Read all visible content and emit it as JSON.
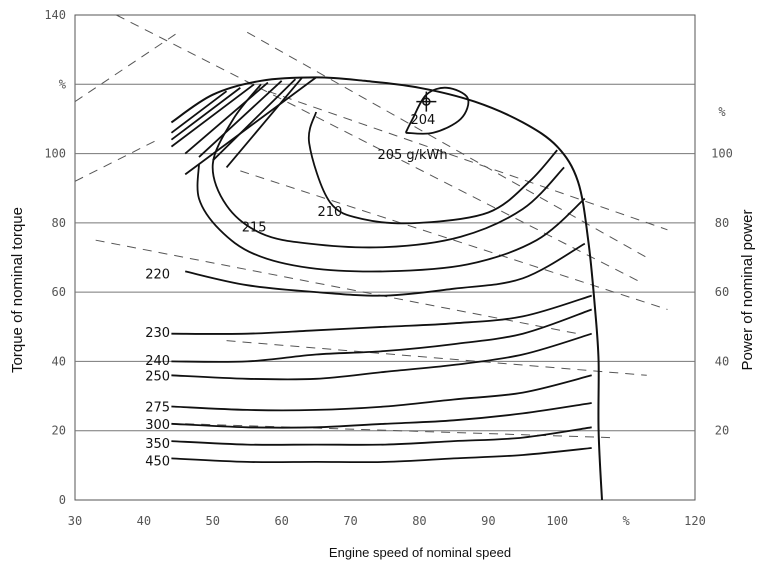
{
  "chart_data": {
    "type": "line",
    "title": "",
    "xlabel": "Engine speed of nominal speed",
    "ylabel": "Torque of nominal torque",
    "y2label": "Power of nominal power",
    "xlim": [
      30,
      120
    ],
    "ylim": [
      0,
      140
    ],
    "y2lim": [
      0,
      140
    ],
    "x_ticks": [
      "30",
      "40",
      "50",
      "60",
      "70",
      "80",
      "90",
      "100",
      "%",
      "120"
    ],
    "y_ticks": [
      "0",
      "20",
      "40",
      "60",
      "80",
      "100",
      "%",
      "140"
    ],
    "y2_ticks": [
      "20",
      "40",
      "60",
      "80",
      "100",
      "%"
    ],
    "grid": true,
    "full_load_curve": [
      [
        44,
        109
      ],
      [
        50,
        117
      ],
      [
        57,
        121
      ],
      [
        65,
        122
      ],
      [
        72,
        121
      ],
      [
        80,
        119
      ],
      [
        88,
        115
      ],
      [
        95,
        109
      ],
      [
        100,
        102
      ],
      [
        103,
        92
      ],
      [
        104.5,
        75
      ],
      [
        105.5,
        55
      ],
      [
        106,
        40
      ],
      [
        106,
        20
      ],
      [
        106.5,
        0
      ]
    ],
    "contours": [
      {
        "label": "204",
        "points": [
          [
            78,
            106
          ],
          [
            79,
            110
          ],
          [
            81,
            117
          ],
          [
            84,
            119
          ],
          [
            87,
            116
          ],
          [
            86,
            110
          ],
          [
            82,
            106
          ],
          [
            78,
            106
          ]
        ]
      },
      {
        "label": "205 g/kWh",
        "points": [
          [
            65,
            112
          ],
          [
            64,
            103
          ],
          [
            67,
            86
          ],
          [
            72,
            81
          ],
          [
            80,
            80
          ],
          [
            90,
            83
          ],
          [
            96,
            92
          ],
          [
            100,
            101
          ]
        ]
      },
      {
        "label": "210",
        "points": [
          [
            57,
            120
          ],
          [
            53,
            110
          ],
          [
            50,
            97
          ],
          [
            52,
            85
          ],
          [
            57,
            77
          ],
          [
            64,
            74
          ],
          [
            75,
            73
          ],
          [
            86,
            76
          ],
          [
            95,
            84
          ],
          [
            101,
            96
          ]
        ]
      },
      {
        "label": "215",
        "points": [
          [
            48,
            97
          ],
          [
            48,
            87
          ],
          [
            51,
            78
          ],
          [
            56,
            71
          ],
          [
            64,
            67
          ],
          [
            75,
            66
          ],
          [
            87,
            68
          ],
          [
            97,
            75
          ],
          [
            104,
            87
          ]
        ]
      },
      {
        "label": "220",
        "points": [
          [
            46,
            66
          ],
          [
            55,
            62
          ],
          [
            65,
            60
          ],
          [
            75,
            59
          ],
          [
            85,
            61
          ],
          [
            95,
            64
          ],
          [
            104,
            74
          ]
        ]
      },
      {
        "label": "230",
        "points": [
          [
            44,
            48
          ],
          [
            55,
            48
          ],
          [
            65,
            49
          ],
          [
            75,
            50
          ],
          [
            85,
            51
          ],
          [
            95,
            53
          ],
          [
            105,
            59
          ]
        ]
      },
      {
        "label": "240",
        "points": [
          [
            44,
            40
          ],
          [
            55,
            40
          ],
          [
            65,
            42
          ],
          [
            75,
            43
          ],
          [
            85,
            45
          ],
          [
            95,
            48
          ],
          [
            105,
            55
          ]
        ]
      },
      {
        "label": "250",
        "points": [
          [
            44,
            36
          ],
          [
            55,
            35
          ],
          [
            65,
            35
          ],
          [
            75,
            37
          ],
          [
            85,
            39
          ],
          [
            95,
            42
          ],
          [
            105,
            48
          ]
        ]
      },
      {
        "label": "275",
        "points": [
          [
            44,
            27
          ],
          [
            55,
            26
          ],
          [
            65,
            26
          ],
          [
            75,
            27
          ],
          [
            85,
            29
          ],
          [
            95,
            31
          ],
          [
            105,
            36
          ]
        ]
      },
      {
        "label": "300",
        "points": [
          [
            44,
            22
          ],
          [
            55,
            21
          ],
          [
            65,
            21
          ],
          [
            75,
            22
          ],
          [
            85,
            23
          ],
          [
            95,
            25
          ],
          [
            105,
            28
          ]
        ]
      },
      {
        "label": "350",
        "points": [
          [
            44,
            17
          ],
          [
            55,
            16
          ],
          [
            65,
            16
          ],
          [
            75,
            16
          ],
          [
            85,
            17
          ],
          [
            95,
            18
          ],
          [
            105,
            21
          ]
        ]
      },
      {
        "label": "450",
        "points": [
          [
            44,
            12
          ],
          [
            55,
            11
          ],
          [
            65,
            11
          ],
          [
            75,
            11
          ],
          [
            85,
            12
          ],
          [
            95,
            13
          ],
          [
            105,
            15
          ]
        ]
      }
    ],
    "operating_point": {
      "x": 81,
      "y": 115
    }
  }
}
